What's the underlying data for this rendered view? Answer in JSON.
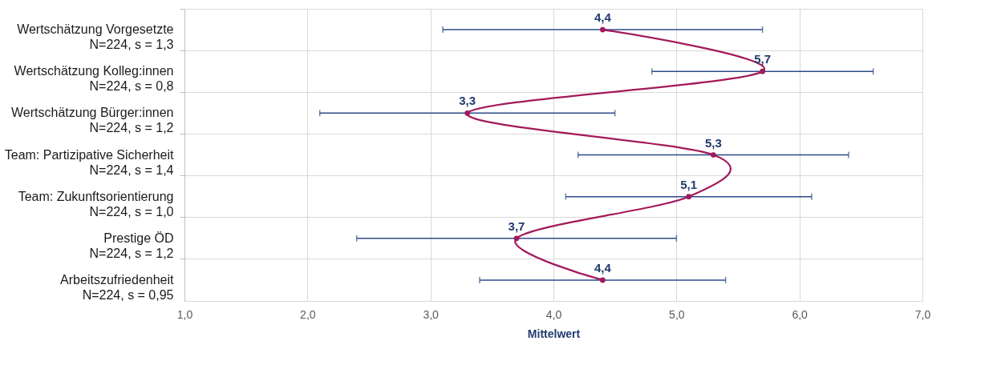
{
  "chart_data": {
    "type": "line",
    "orientation": "horizontal",
    "categories": [
      "Wertschätzung Vorgesetzte\nN=224, s = 1,3",
      "Wertschätzung Kolleg:innen\nN=224, s = 0,8",
      "Wertschätzung Bürger:innen\nN=224, s = 1,2",
      "Team: Partizipative Sicherheit\nN=224, s = 1,4",
      "Team: Zukunftsorientierung\nN=224, s = 1,0",
      "Prestige ÖD\nN=224, s = 1,2",
      "Arbeitszufriedenheit\nN=224, s = 0,95"
    ],
    "xlabel": "Mittelwert",
    "xlim": [
      1,
      7
    ],
    "xticks": [
      {
        "value": 1,
        "label": "1,0"
      },
      {
        "value": 2,
        "label": "2,0"
      },
      {
        "value": 3,
        "label": "3,0"
      },
      {
        "value": 4,
        "label": "4,0"
      },
      {
        "value": 5,
        "label": "5,0"
      },
      {
        "value": 6,
        "label": "6,0"
      },
      {
        "value": 7,
        "label": "7,0"
      }
    ],
    "grid": true,
    "marker": "circle",
    "line_style": "solid",
    "series": [
      {
        "color": "#a3195b",
        "values": [
          4.4,
          5.7,
          3.3,
          5.3,
          5.1,
          3.7,
          4.4
        ],
        "errors": [
          [
            3.1,
            5.7
          ],
          [
            4.8,
            6.6
          ],
          [
            2.1,
            4.5
          ],
          [
            4.2,
            6.4
          ],
          [
            4.1,
            6.1
          ],
          [
            2.4,
            5.0
          ],
          [
            3.4,
            5.4
          ]
        ],
        "value_labels": [
          "4,4",
          "5,7",
          "3,3",
          "5,3",
          "5,1",
          "3,7",
          "4,4"
        ]
      }
    ]
  }
}
